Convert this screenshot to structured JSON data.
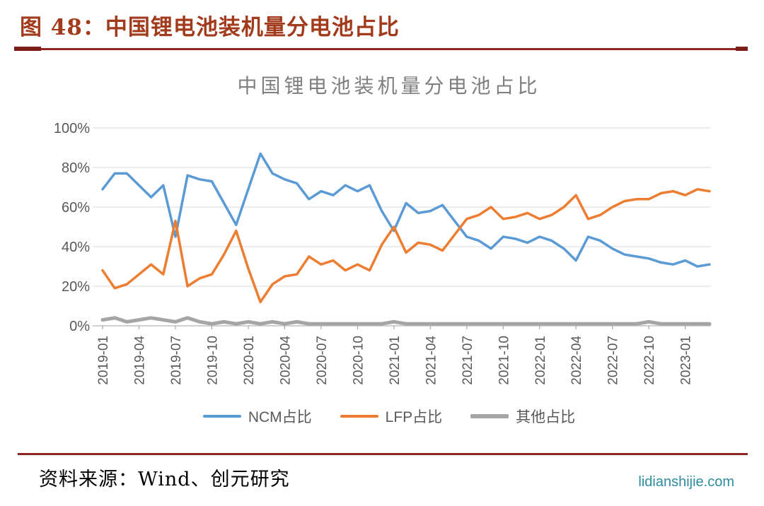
{
  "figure": {
    "header": "图 48：中国锂电池装机量分电池占比"
  },
  "chart_data": {
    "type": "line",
    "title": "中国锂电池装机量分电池占比",
    "xlabel": "",
    "ylabel": "",
    "ylim": [
      0,
      100
    ],
    "y_ticks_percent": [
      0,
      20,
      40,
      60,
      80,
      100
    ],
    "grid": true,
    "legend_position": "bottom",
    "x_axis_tick_every": 3,
    "x": [
      "2019-01",
      "2019-02",
      "2019-03",
      "2019-04",
      "2019-05",
      "2019-06",
      "2019-07",
      "2019-08",
      "2019-09",
      "2019-10",
      "2019-11",
      "2019-12",
      "2020-01",
      "2020-02",
      "2020-03",
      "2020-04",
      "2020-05",
      "2020-06",
      "2020-07",
      "2020-08",
      "2020-09",
      "2020-10",
      "2020-11",
      "2020-12",
      "2021-01",
      "2021-02",
      "2021-03",
      "2021-04",
      "2021-05",
      "2021-06",
      "2021-07",
      "2021-08",
      "2021-09",
      "2021-10",
      "2021-11",
      "2021-12",
      "2022-01",
      "2022-02",
      "2022-03",
      "2022-04",
      "2022-05",
      "2022-06",
      "2022-07",
      "2022-08",
      "2022-09",
      "2022-10",
      "2022-11",
      "2022-12",
      "2023-01",
      "2023-02",
      "2023-03"
    ],
    "x_tick_labels": [
      "2019-01",
      "2019-04",
      "2019-07",
      "2019-10",
      "2020-01",
      "2020-04",
      "2020-07",
      "2020-10",
      "2021-01",
      "2021-04",
      "2021-07",
      "2021-10",
      "2022-01",
      "2022-04",
      "2022-07",
      "2022-10",
      "2023-01"
    ],
    "series": [
      {
        "name": "NCM占比",
        "color": "#5B9BD5",
        "width": 3.5,
        "values": [
          69,
          77,
          77,
          71,
          65,
          71,
          45,
          76,
          74,
          73,
          62,
          51,
          69,
          87,
          77,
          74,
          72,
          64,
          68,
          66,
          71,
          68,
          71,
          58,
          48,
          62,
          57,
          58,
          61,
          53,
          45,
          43,
          39,
          45,
          44,
          42,
          45,
          43,
          39,
          33,
          45,
          43,
          39,
          36,
          35,
          34,
          32,
          31,
          33,
          30,
          31
        ]
      },
      {
        "name": "LFP占比",
        "color": "#ED7D31",
        "width": 3.5,
        "values": [
          28,
          19,
          21,
          26,
          31,
          26,
          53,
          20,
          24,
          26,
          36,
          48,
          29,
          12,
          21,
          25,
          26,
          35,
          31,
          33,
          28,
          31,
          28,
          41,
          50,
          37,
          42,
          41,
          38,
          46,
          54,
          56,
          60,
          54,
          55,
          57,
          54,
          56,
          60,
          66,
          54,
          56,
          60,
          63,
          64,
          64,
          67,
          68,
          66,
          69,
          68
        ]
      },
      {
        "name": "其他占比",
        "color": "#A5A5A5",
        "width": 5,
        "values": [
          3,
          4,
          2,
          3,
          4,
          3,
          2,
          4,
          2,
          1,
          2,
          1,
          2,
          1,
          2,
          1,
          2,
          1,
          1,
          1,
          1,
          1,
          1,
          1,
          2,
          1,
          1,
          1,
          1,
          1,
          1,
          1,
          1,
          1,
          1,
          1,
          1,
          1,
          1,
          1,
          1,
          1,
          1,
          1,
          1,
          2,
          1,
          1,
          1,
          1,
          1
        ]
      }
    ]
  },
  "footer": {
    "source": "资料来源：Wind、创元研究",
    "watermark": "lidianshijie.com"
  },
  "colors": {
    "header_text": "#A23A1C",
    "rule": "#8E2522",
    "rule_cap": "#7C1D18",
    "chart_title": "#7F7F7F",
    "axis_text": "#595959",
    "grid": "#D9D9D9",
    "axis_line": "#C1C1C1",
    "tick": "#A6A6A6",
    "source_text": "#000000",
    "watermark": "#2E8C9E"
  }
}
